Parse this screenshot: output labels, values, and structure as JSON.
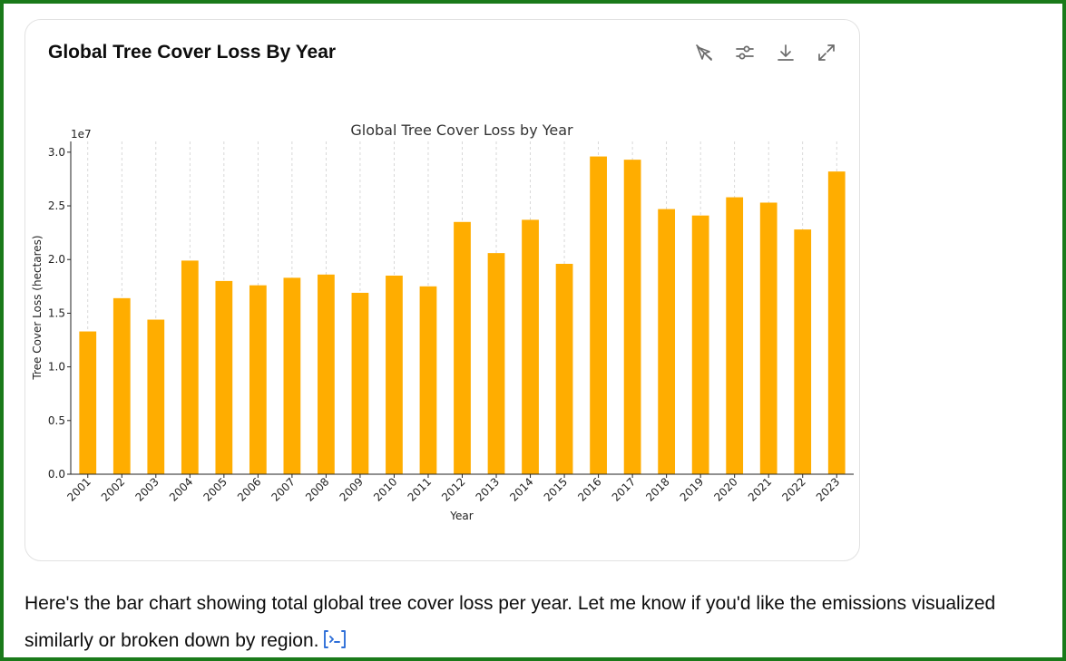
{
  "card": {
    "title": "Global Tree Cover Loss By Year",
    "toolbar": [
      {
        "name": "interactive-toggle-icon"
      },
      {
        "name": "settings-sliders-icon"
      },
      {
        "name": "download-icon"
      },
      {
        "name": "expand-icon"
      }
    ]
  },
  "chart_data": {
    "type": "bar",
    "title": "Global Tree Cover Loss by Year",
    "xlabel": "Year",
    "ylabel": "Tree Cover Loss (hectares)",
    "y_offset_label": "1e7",
    "ylim": [
      0,
      31000000
    ],
    "yticks": [
      0,
      5000000,
      10000000,
      15000000,
      20000000,
      25000000,
      30000000
    ],
    "ytick_labels": [
      "0.0",
      "0.5",
      "1.0",
      "1.5",
      "2.0",
      "2.5",
      "3.0"
    ],
    "grid": "x",
    "bar_color": "#ffad00",
    "categories": [
      "2001",
      "2002",
      "2003",
      "2004",
      "2005",
      "2006",
      "2007",
      "2008",
      "2009",
      "2010",
      "2011",
      "2012",
      "2013",
      "2014",
      "2015",
      "2016",
      "2017",
      "2018",
      "2019",
      "2020",
      "2021",
      "2022",
      "2023"
    ],
    "values": [
      13300000,
      16400000,
      14400000,
      19900000,
      18000000,
      17600000,
      18300000,
      18600000,
      16900000,
      18500000,
      17500000,
      23500000,
      20600000,
      23700000,
      19600000,
      29600000,
      29300000,
      24700000,
      24100000,
      25800000,
      25300000,
      22800000,
      28200000
    ]
  },
  "message": {
    "text": "Here's the bar chart showing total global tree cover loss per year. Let me know if you'd like the emissions visualized similarly or broken down by region."
  }
}
